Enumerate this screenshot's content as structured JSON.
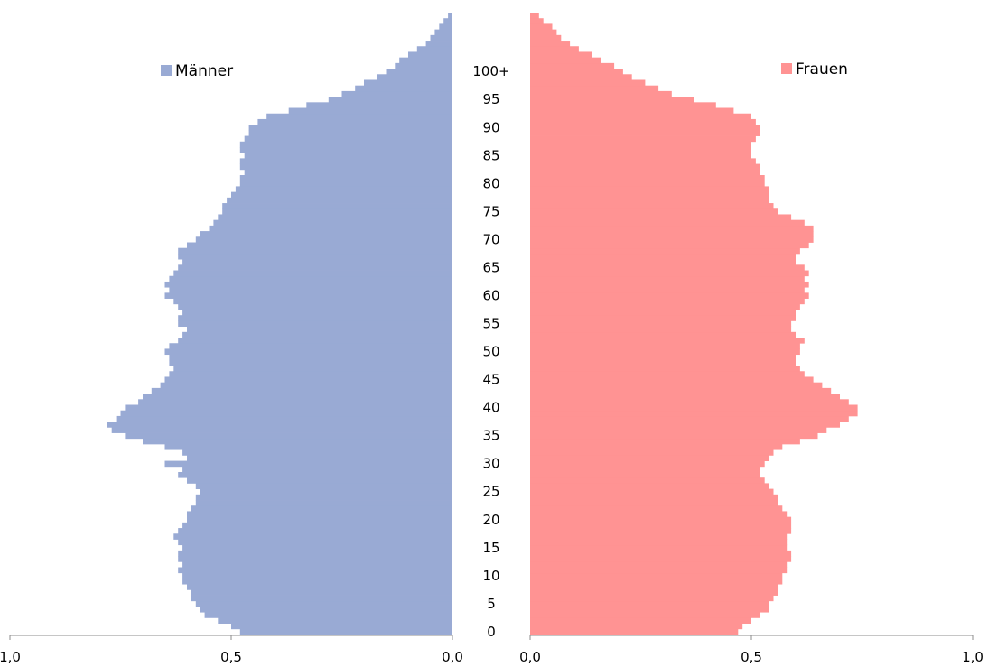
{
  "chart_data": {
    "type": "bar",
    "orientation": "horizontal",
    "subtype": "population-pyramid",
    "age_labels": [
      "0",
      "5",
      "10",
      "15",
      "20",
      "25",
      "30",
      "35",
      "40",
      "45",
      "50",
      "55",
      "60",
      "65",
      "70",
      "75",
      "80",
      "85",
      "90",
      "95",
      "100+"
    ],
    "x_ticks_left": [
      "1,0",
      "0,5",
      "0,0"
    ],
    "x_ticks_right": [
      "0,0",
      "0,5",
      "1,0"
    ],
    "xlim": [
      0,
      1.0
    ],
    "legend": {
      "men": "Männer",
      "women": "Frauen"
    },
    "colors": {
      "men": "#99aad4",
      "women": "#ff9393"
    },
    "series": [
      {
        "name": "Männer",
        "values": [
          0.48,
          0.5,
          0.53,
          0.56,
          0.57,
          0.58,
          0.59,
          0.59,
          0.6,
          0.61,
          0.61,
          0.62,
          0.61,
          0.62,
          0.62,
          0.61,
          0.62,
          0.63,
          0.62,
          0.61,
          0.6,
          0.6,
          0.59,
          0.58,
          0.58,
          0.57,
          0.58,
          0.6,
          0.62,
          0.61,
          0.65,
          0.6,
          0.61,
          0.65,
          0.7,
          0.74,
          0.77,
          0.78,
          0.76,
          0.75,
          0.74,
          0.71,
          0.7,
          0.68,
          0.66,
          0.65,
          0.64,
          0.63,
          0.64,
          0.64,
          0.65,
          0.64,
          0.62,
          0.61,
          0.6,
          0.62,
          0.62,
          0.61,
          0.62,
          0.63,
          0.65,
          0.64,
          0.65,
          0.64,
          0.63,
          0.62,
          0.61,
          0.62,
          0.62,
          0.6,
          0.58,
          0.57,
          0.55,
          0.54,
          0.53,
          0.52,
          0.52,
          0.51,
          0.5,
          0.49,
          0.48,
          0.48,
          0.47,
          0.48,
          0.48,
          0.47,
          0.48,
          0.48,
          0.47,
          0.46,
          0.46,
          0.44,
          0.42,
          0.37,
          0.33,
          0.28,
          0.25,
          0.22,
          0.2,
          0.17,
          0.15,
          0.13,
          0.12,
          0.1,
          0.08,
          0.06,
          0.05,
          0.04,
          0.03,
          0.02,
          0.01
        ]
      },
      {
        "name": "Frauen",
        "values": [
          0.47,
          0.48,
          0.5,
          0.52,
          0.54,
          0.54,
          0.55,
          0.56,
          0.56,
          0.57,
          0.57,
          0.58,
          0.58,
          0.59,
          0.59,
          0.58,
          0.58,
          0.58,
          0.59,
          0.59,
          0.59,
          0.58,
          0.57,
          0.56,
          0.56,
          0.55,
          0.54,
          0.53,
          0.52,
          0.52,
          0.53,
          0.54,
          0.55,
          0.57,
          0.61,
          0.65,
          0.67,
          0.7,
          0.72,
          0.74,
          0.74,
          0.72,
          0.7,
          0.68,
          0.66,
          0.64,
          0.62,
          0.61,
          0.6,
          0.6,
          0.61,
          0.61,
          0.62,
          0.6,
          0.59,
          0.59,
          0.6,
          0.6,
          0.61,
          0.62,
          0.63,
          0.62,
          0.63,
          0.62,
          0.63,
          0.62,
          0.6,
          0.6,
          0.61,
          0.63,
          0.64,
          0.64,
          0.64,
          0.62,
          0.59,
          0.56,
          0.55,
          0.54,
          0.54,
          0.54,
          0.53,
          0.53,
          0.52,
          0.52,
          0.51,
          0.5,
          0.5,
          0.5,
          0.51,
          0.52,
          0.52,
          0.51,
          0.5,
          0.46,
          0.42,
          0.37,
          0.32,
          0.29,
          0.26,
          0.23,
          0.21,
          0.19,
          0.16,
          0.14,
          0.11,
          0.09,
          0.07,
          0.06,
          0.05,
          0.03,
          0.02
        ]
      }
    ]
  }
}
